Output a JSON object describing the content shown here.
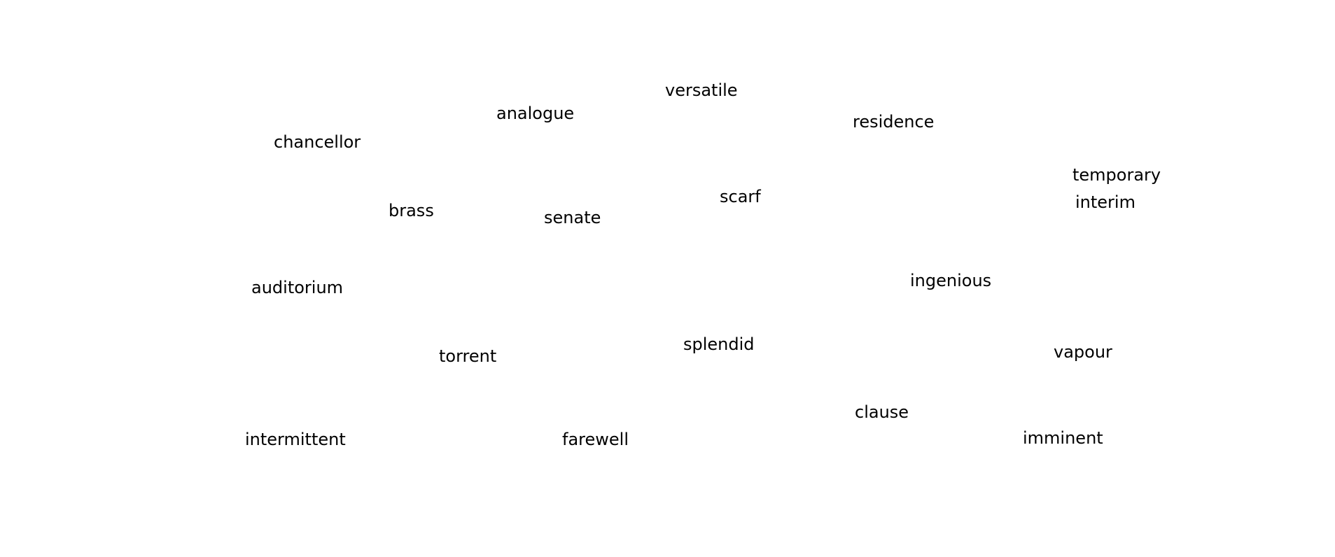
{
  "words": [
    {
      "id": "versatile",
      "text": "versatile"
    },
    {
      "id": "analogue",
      "text": "analogue"
    },
    {
      "id": "residence",
      "text": "residence"
    },
    {
      "id": "chancellor",
      "text": "chancellor"
    },
    {
      "id": "temporary",
      "text": "temporary"
    },
    {
      "id": "scarf",
      "text": "scarf"
    },
    {
      "id": "interim",
      "text": "interim"
    },
    {
      "id": "brass",
      "text": "brass"
    },
    {
      "id": "senate",
      "text": "senate"
    },
    {
      "id": "ingenious",
      "text": "ingenious"
    },
    {
      "id": "auditorium",
      "text": "auditorium"
    },
    {
      "id": "splendid",
      "text": "splendid"
    },
    {
      "id": "vapour",
      "text": "vapour"
    },
    {
      "id": "torrent",
      "text": "torrent"
    },
    {
      "id": "clause",
      "text": "clause"
    },
    {
      "id": "imminent",
      "text": "imminent"
    },
    {
      "id": "intermittent",
      "text": "intermittent"
    },
    {
      "id": "farewell",
      "text": "farewell"
    }
  ],
  "colors": {
    "background": "#ffffff",
    "text": "#000000"
  }
}
